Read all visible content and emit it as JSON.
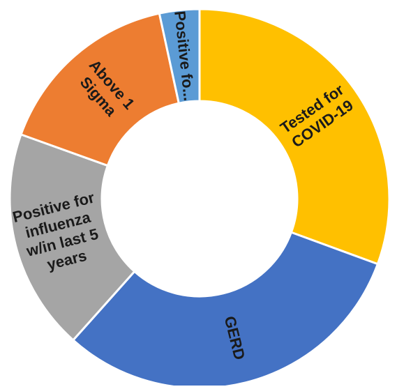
{
  "chart_data": {
    "type": "pie",
    "subtype": "donut",
    "title": "",
    "slices": [
      {
        "label": [
          "Tested for",
          "COVID-19"
        ],
        "value": 30.6,
        "color": "#ffc000"
      },
      {
        "label": [
          "GERD"
        ],
        "value": 31.0,
        "color": "#4472c4"
      },
      {
        "label": [
          "Positive for",
          "influenza",
          "w/in last 5",
          "years"
        ],
        "value": 18.9,
        "color": "#a5a5a5"
      },
      {
        "label": [
          "Above 1",
          "Sigma"
        ],
        "value": 16.1,
        "color": "#ed7d31"
      },
      {
        "label": [
          "Positive fo..."
        ],
        "value": 3.4,
        "color": "#5b9bd5"
      }
    ],
    "legend": "none",
    "grid": false
  }
}
